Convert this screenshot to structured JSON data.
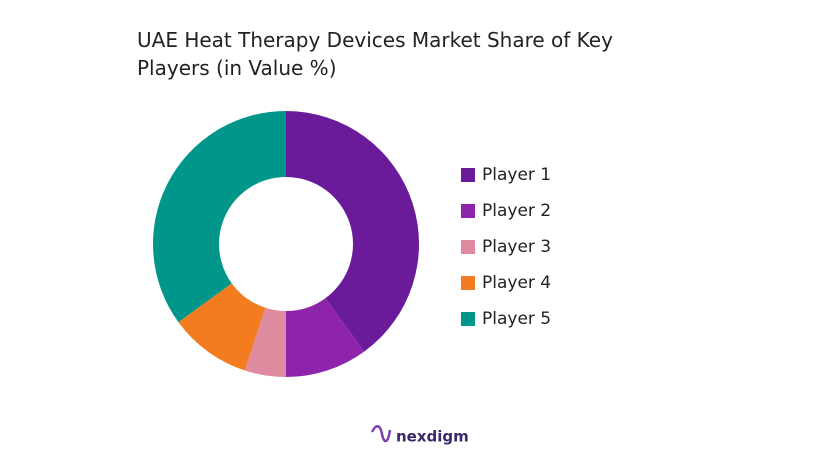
{
  "chart_data": {
    "type": "donut",
    "title": "UAE Heat Therapy Devices Market Share of Key Players (in Value %)",
    "categories": [
      "Player 1",
      "Player 2",
      "Player 3",
      "Player 4",
      "Player 5"
    ],
    "values": [
      40,
      10,
      5,
      10,
      35
    ],
    "colors": [
      "#6a1b9a",
      "#8e24aa",
      "#e08aa0",
      "#f47c20",
      "#00968a"
    ],
    "legend": "right"
  },
  "brand": "nexdigm"
}
